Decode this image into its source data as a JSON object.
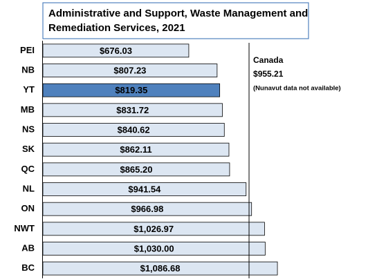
{
  "chart_data": {
    "type": "hbar",
    "title": "Administrative and Support, Waste Management and Remediation Services, 2021",
    "categories": [
      "PEI",
      "NB",
      "YT",
      "MB",
      "NS",
      "SK",
      "QC",
      "NL",
      "ON",
      "NWT",
      "AB",
      "BC"
    ],
    "values": [
      676.03,
      807.23,
      819.35,
      831.72,
      840.62,
      862.11,
      865.2,
      941.54,
      966.98,
      1026.97,
      1030.0,
      1086.68
    ],
    "value_labels": [
      "$676.03",
      "$807.23",
      "$819.35",
      "$831.72",
      "$840.62",
      "$862.11",
      "$865.20",
      "$941.54",
      "$966.98",
      "$1,026.97",
      "$1,030.00",
      "$1,086.68"
    ],
    "color": "#dce6f2",
    "highlight_category": "YT",
    "highlight_color": "#4f81bd",
    "xlim": [
      0,
      1500
    ],
    "reference": {
      "label": "Canada",
      "value": 955.21,
      "value_label": "$955.21",
      "note": "(Nunavut data not available)"
    }
  }
}
